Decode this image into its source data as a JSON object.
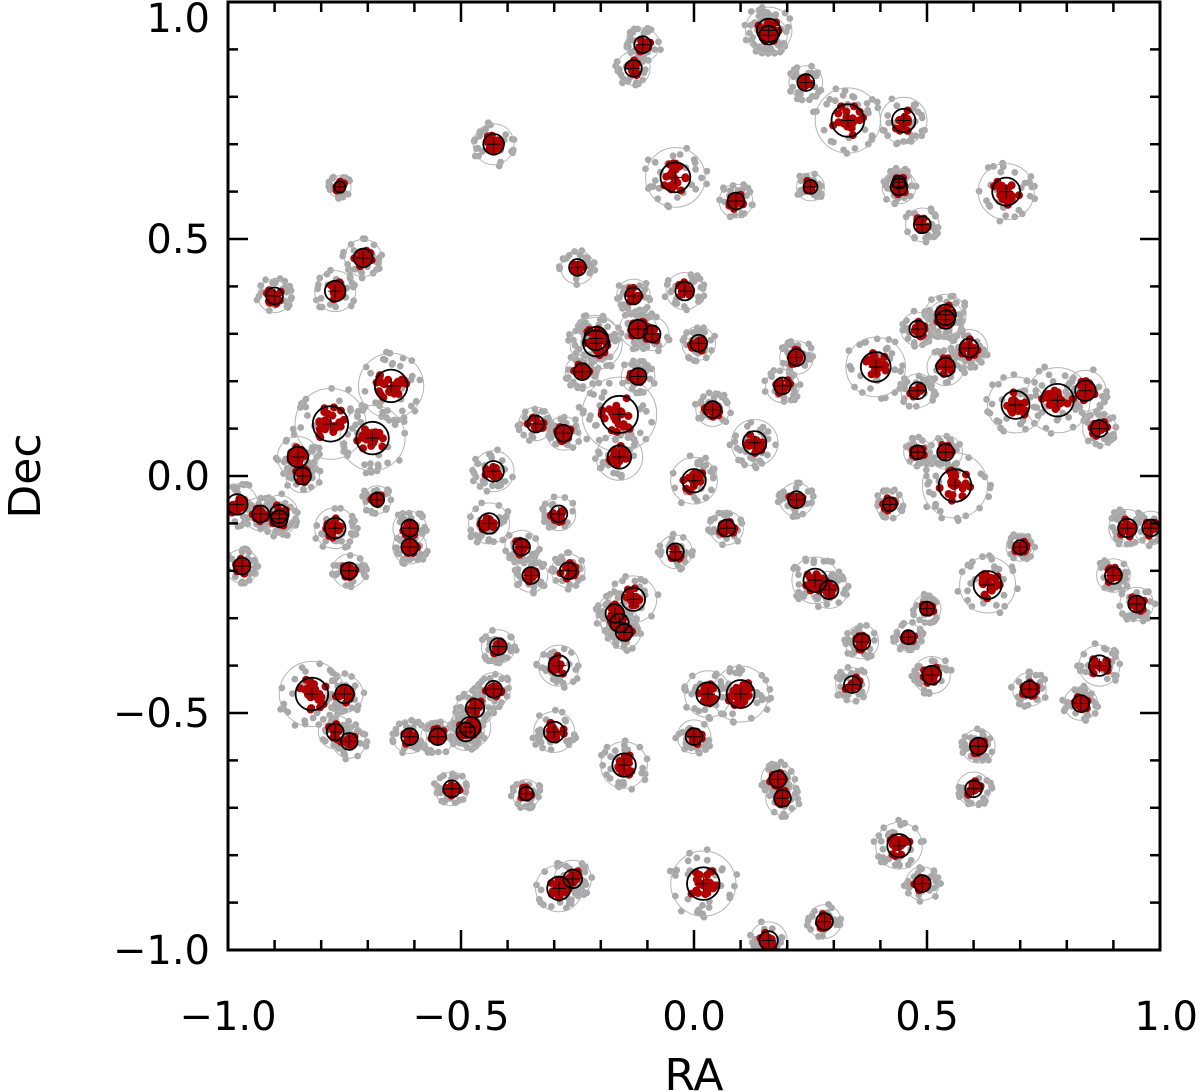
{
  "chart_data": {
    "type": "scatter",
    "title": "",
    "xlabel": "RA",
    "ylabel": "Dec",
    "xlim": [
      -1.0,
      1.0
    ],
    "ylim": [
      -1.0,
      1.0
    ],
    "x_ticks": [
      -1.0,
      -0.5,
      0.0,
      0.5,
      1.0
    ],
    "y_ticks": [
      -1.0,
      -0.5,
      0.0,
      0.5,
      1.0
    ],
    "x_tick_labels": [
      "−1.0",
      "−0.5",
      "0.0",
      "0.5",
      "1.0"
    ],
    "y_tick_labels": [
      "−1.0",
      "−0.5",
      "0.0",
      "0.5",
      "1.0"
    ],
    "grid": false,
    "colors": {
      "member_points": "#b00000",
      "field_points": "#a8a8a8",
      "inner_circle": "#000000",
      "outer_circle": "#b4b4b4",
      "center_marker": "#000000"
    },
    "series": [
      {
        "kind": "groups",
        "description_of_marks": "each group: center '+' marker, black inner circle (radius r), gray outer circle (radius 2r), red member points and gray surrounding points",
        "groups": [
          {
            "x": 0.16,
            "y": 0.94,
            "r": 0.025
          },
          {
            "x": 0.16,
            "y": 0.93,
            "r": 0.02
          },
          {
            "x": -0.11,
            "y": 0.91,
            "r": 0.018
          },
          {
            "x": -0.13,
            "y": 0.86,
            "r": 0.018
          },
          {
            "x": 0.24,
            "y": 0.83,
            "r": 0.018
          },
          {
            "x": 0.33,
            "y": 0.75,
            "r": 0.035
          },
          {
            "x": 0.45,
            "y": 0.75,
            "r": 0.025
          },
          {
            "x": -0.43,
            "y": 0.7,
            "r": 0.022
          },
          {
            "x": -0.04,
            "y": 0.63,
            "r": 0.032
          },
          {
            "x": 0.09,
            "y": 0.58,
            "r": 0.018
          },
          {
            "x": 0.25,
            "y": 0.61,
            "r": 0.015
          },
          {
            "x": 0.44,
            "y": 0.61,
            "r": 0.018
          },
          {
            "x": 0.44,
            "y": 0.62,
            "r": 0.014
          },
          {
            "x": 0.67,
            "y": 0.6,
            "r": 0.03
          },
          {
            "x": -0.76,
            "y": 0.61,
            "r": 0.012
          },
          {
            "x": 0.49,
            "y": 0.53,
            "r": 0.018
          },
          {
            "x": -0.71,
            "y": 0.46,
            "r": 0.02
          },
          {
            "x": -0.9,
            "y": 0.38,
            "r": 0.018
          },
          {
            "x": -0.77,
            "y": 0.39,
            "r": 0.022
          },
          {
            "x": -0.25,
            "y": 0.44,
            "r": 0.018
          },
          {
            "x": -0.02,
            "y": 0.39,
            "r": 0.02
          },
          {
            "x": -0.13,
            "y": 0.38,
            "r": 0.018
          },
          {
            "x": -0.21,
            "y": 0.29,
            "r": 0.025
          },
          {
            "x": -0.21,
            "y": 0.28,
            "r": 0.028
          },
          {
            "x": -0.12,
            "y": 0.31,
            "r": 0.02
          },
          {
            "x": -0.09,
            "y": 0.3,
            "r": 0.018
          },
          {
            "x": 0.01,
            "y": 0.28,
            "r": 0.018
          },
          {
            "x": 0.48,
            "y": 0.31,
            "r": 0.018
          },
          {
            "x": 0.54,
            "y": 0.34,
            "r": 0.022
          },
          {
            "x": 0.54,
            "y": 0.33,
            "r": 0.02
          },
          {
            "x": 0.59,
            "y": 0.27,
            "r": 0.02
          },
          {
            "x": 0.22,
            "y": 0.25,
            "r": 0.018
          },
          {
            "x": 0.39,
            "y": 0.23,
            "r": 0.032
          },
          {
            "x": 0.54,
            "y": 0.23,
            "r": 0.02
          },
          {
            "x": -0.65,
            "y": 0.19,
            "r": 0.035
          },
          {
            "x": -0.24,
            "y": 0.22,
            "r": 0.018
          },
          {
            "x": -0.12,
            "y": 0.21,
            "r": 0.018
          },
          {
            "x": 0.19,
            "y": 0.19,
            "r": 0.018
          },
          {
            "x": 0.48,
            "y": 0.18,
            "r": 0.018
          },
          {
            "x": -0.16,
            "y": 0.13,
            "r": 0.04
          },
          {
            "x": 0.69,
            "y": 0.15,
            "r": 0.03
          },
          {
            "x": 0.78,
            "y": 0.16,
            "r": 0.035
          },
          {
            "x": 0.84,
            "y": 0.18,
            "r": 0.022
          },
          {
            "x": -0.78,
            "y": 0.11,
            "r": 0.038
          },
          {
            "x": -0.69,
            "y": 0.08,
            "r": 0.035
          },
          {
            "x": -0.34,
            "y": 0.11,
            "r": 0.018
          },
          {
            "x": -0.28,
            "y": 0.09,
            "r": 0.018
          },
          {
            "x": 0.04,
            "y": 0.14,
            "r": 0.018
          },
          {
            "x": 0.13,
            "y": 0.07,
            "r": 0.025
          },
          {
            "x": 0.87,
            "y": 0.1,
            "r": 0.018
          },
          {
            "x": -0.85,
            "y": 0.04,
            "r": 0.022
          },
          {
            "x": -0.84,
            "y": 0.0,
            "r": 0.018
          },
          {
            "x": -0.43,
            "y": 0.01,
            "r": 0.022
          },
          {
            "x": -0.16,
            "y": 0.04,
            "r": 0.025
          },
          {
            "x": 0.0,
            "y": -0.01,
            "r": 0.025
          },
          {
            "x": 0.48,
            "y": 0.05,
            "r": 0.015
          },
          {
            "x": 0.54,
            "y": 0.05,
            "r": 0.018
          },
          {
            "x": 0.56,
            "y": -0.02,
            "r": 0.035
          },
          {
            "x": -0.98,
            "y": -0.06,
            "r": 0.022
          },
          {
            "x": -0.93,
            "y": -0.08,
            "r": 0.018
          },
          {
            "x": -0.89,
            "y": -0.08,
            "r": 0.02
          },
          {
            "x": -0.89,
            "y": -0.09,
            "r": 0.018
          },
          {
            "x": -0.68,
            "y": -0.05,
            "r": 0.015
          },
          {
            "x": -0.61,
            "y": -0.11,
            "r": 0.018
          },
          {
            "x": -0.61,
            "y": -0.15,
            "r": 0.018
          },
          {
            "x": -0.77,
            "y": -0.11,
            "r": 0.022
          },
          {
            "x": -0.44,
            "y": -0.1,
            "r": 0.022
          },
          {
            "x": -0.29,
            "y": -0.08,
            "r": 0.018
          },
          {
            "x": 0.22,
            "y": -0.05,
            "r": 0.018
          },
          {
            "x": 0.42,
            "y": -0.06,
            "r": 0.015
          },
          {
            "x": 0.07,
            "y": -0.11,
            "r": 0.018
          },
          {
            "x": -0.04,
            "y": -0.16,
            "r": 0.018
          },
          {
            "x": 0.93,
            "y": -0.11,
            "r": 0.02
          },
          {
            "x": 0.98,
            "y": -0.11,
            "r": 0.018
          },
          {
            "x": 0.7,
            "y": -0.15,
            "r": 0.015
          },
          {
            "x": -0.97,
            "y": -0.19,
            "r": 0.018
          },
          {
            "x": -0.74,
            "y": -0.2,
            "r": 0.018
          },
          {
            "x": -0.37,
            "y": -0.15,
            "r": 0.018
          },
          {
            "x": -0.35,
            "y": -0.21,
            "r": 0.018
          },
          {
            "x": -0.27,
            "y": -0.2,
            "r": 0.018
          },
          {
            "x": 0.26,
            "y": -0.22,
            "r": 0.025
          },
          {
            "x": 0.29,
            "y": -0.24,
            "r": 0.02
          },
          {
            "x": 0.63,
            "y": -0.23,
            "r": 0.03
          },
          {
            "x": 0.9,
            "y": -0.21,
            "r": 0.018
          },
          {
            "x": 0.95,
            "y": -0.27,
            "r": 0.018
          },
          {
            "x": -0.17,
            "y": -0.29,
            "r": 0.02
          },
          {
            "x": -0.13,
            "y": -0.26,
            "r": 0.025
          },
          {
            "x": -0.16,
            "y": -0.31,
            "r": 0.02
          },
          {
            "x": -0.15,
            "y": -0.33,
            "r": 0.018
          },
          {
            "x": 0.5,
            "y": -0.28,
            "r": 0.015
          },
          {
            "x": -0.42,
            "y": -0.36,
            "r": 0.018
          },
          {
            "x": 0.36,
            "y": -0.35,
            "r": 0.018
          },
          {
            "x": 0.46,
            "y": -0.34,
            "r": 0.015
          },
          {
            "x": -0.29,
            "y": -0.4,
            "r": 0.022
          },
          {
            "x": 0.51,
            "y": -0.42,
            "r": 0.02
          },
          {
            "x": 0.87,
            "y": -0.4,
            "r": 0.022
          },
          {
            "x": -0.82,
            "y": -0.46,
            "r": 0.035
          },
          {
            "x": -0.75,
            "y": -0.46,
            "r": 0.02
          },
          {
            "x": -0.77,
            "y": -0.54,
            "r": 0.018
          },
          {
            "x": -0.74,
            "y": -0.56,
            "r": 0.018
          },
          {
            "x": -0.43,
            "y": -0.45,
            "r": 0.018
          },
          {
            "x": -0.47,
            "y": -0.49,
            "r": 0.02
          },
          {
            "x": -0.48,
            "y": -0.53,
            "r": 0.022
          },
          {
            "x": -0.49,
            "y": -0.54,
            "r": 0.02
          },
          {
            "x": -0.55,
            "y": -0.55,
            "r": 0.018
          },
          {
            "x": -0.61,
            "y": -0.55,
            "r": 0.018
          },
          {
            "x": 0.03,
            "y": -0.46,
            "r": 0.025
          },
          {
            "x": 0.1,
            "y": -0.46,
            "r": 0.03
          },
          {
            "x": 0.34,
            "y": -0.44,
            "r": 0.018
          },
          {
            "x": 0.72,
            "y": -0.45,
            "r": 0.018
          },
          {
            "x": 0.83,
            "y": -0.48,
            "r": 0.018
          },
          {
            "x": -0.3,
            "y": -0.54,
            "r": 0.022
          },
          {
            "x": 0.0,
            "y": -0.55,
            "r": 0.018
          },
          {
            "x": -0.15,
            "y": -0.61,
            "r": 0.025
          },
          {
            "x": 0.61,
            "y": -0.57,
            "r": 0.018
          },
          {
            "x": -0.52,
            "y": -0.66,
            "r": 0.018
          },
          {
            "x": -0.36,
            "y": -0.67,
            "r": 0.015
          },
          {
            "x": 0.18,
            "y": -0.64,
            "r": 0.018
          },
          {
            "x": 0.19,
            "y": -0.68,
            "r": 0.018
          },
          {
            "x": 0.6,
            "y": -0.66,
            "r": 0.018
          },
          {
            "x": 0.44,
            "y": -0.78,
            "r": 0.025
          },
          {
            "x": 0.49,
            "y": -0.86,
            "r": 0.018
          },
          {
            "x": -0.29,
            "y": -0.87,
            "r": 0.025
          },
          {
            "x": -0.26,
            "y": -0.85,
            "r": 0.02
          },
          {
            "x": 0.02,
            "y": -0.86,
            "r": 0.035
          },
          {
            "x": 0.28,
            "y": -0.94,
            "r": 0.018
          },
          {
            "x": 0.16,
            "y": -0.98,
            "r": 0.02
          }
        ]
      }
    ]
  }
}
